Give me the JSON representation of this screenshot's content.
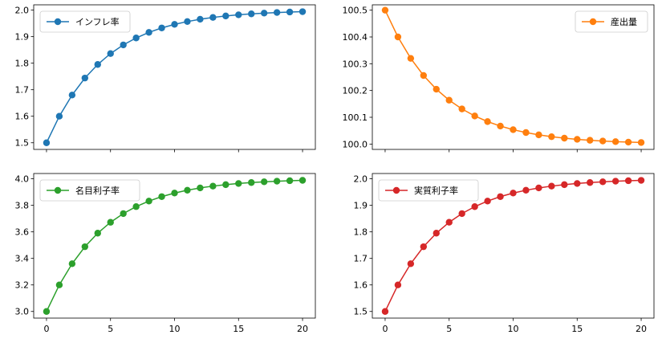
{
  "chart_data": [
    {
      "type": "line",
      "legend": {
        "label": "インフレ率",
        "placement": "top-left"
      },
      "color": "#1f77b4",
      "x": [
        0,
        1,
        2,
        3,
        4,
        5,
        6,
        7,
        8,
        9,
        10,
        11,
        12,
        13,
        14,
        15,
        16,
        17,
        18,
        19,
        20
      ],
      "values": [
        1.5,
        1.6,
        1.68,
        1.744,
        1.7952,
        1.8362,
        1.8689,
        1.8951,
        1.9161,
        1.9329,
        1.9463,
        1.957,
        1.9656,
        1.9725,
        1.978,
        1.9824,
        1.9859,
        1.9887,
        1.991,
        1.9928,
        1.9942
      ],
      "xlim": [
        -1,
        21
      ],
      "ylim": [
        1.475,
        2.02
      ],
      "x_ticks": [
        0,
        5,
        10,
        15,
        20
      ],
      "y_ticks": [
        1.5,
        1.6,
        1.7,
        1.8,
        1.9,
        2.0
      ],
      "y_tick_labels": [
        "1.5",
        "1.6",
        "1.7",
        "1.8",
        "1.9",
        "2.0"
      ],
      "show_x_tick_labels": false
    },
    {
      "type": "line",
      "legend": {
        "label": "産出量",
        "placement": "top-right"
      },
      "color": "#ff7f0e",
      "x": [
        0,
        1,
        2,
        3,
        4,
        5,
        6,
        7,
        8,
        9,
        10,
        11,
        12,
        13,
        14,
        15,
        16,
        17,
        18,
        19,
        20
      ],
      "values": [
        100.5,
        100.4,
        100.32,
        100.256,
        100.2048,
        100.1638,
        100.1311,
        100.1049,
        100.0839,
        100.0671,
        100.0537,
        100.043,
        100.0344,
        100.0275,
        100.022,
        100.0176,
        100.0141,
        100.0113,
        100.009,
        100.0072,
        100.0058
      ],
      "xlim": [
        -1,
        21
      ],
      "ylim": [
        99.98,
        100.52
      ],
      "x_ticks": [
        0,
        5,
        10,
        15,
        20
      ],
      "y_ticks": [
        100.0,
        100.1,
        100.2,
        100.3,
        100.4,
        100.5
      ],
      "y_tick_labels": [
        "100.0",
        "100.1",
        "100.2",
        "100.3",
        "100.4",
        "100.5"
      ],
      "show_x_tick_labels": false
    },
    {
      "type": "line",
      "legend": {
        "label": "名目利子率",
        "placement": "top-left"
      },
      "color": "#2ca02c",
      "x": [
        0,
        1,
        2,
        3,
        4,
        5,
        6,
        7,
        8,
        9,
        10,
        11,
        12,
        13,
        14,
        15,
        16,
        17,
        18,
        19,
        20
      ],
      "values": [
        3.0,
        3.2,
        3.36,
        3.488,
        3.5904,
        3.6723,
        3.7379,
        3.7903,
        3.8322,
        3.8658,
        3.8926,
        3.9141,
        3.9313,
        3.945,
        3.956,
        3.9648,
        3.9719,
        3.9775,
        3.982,
        3.9856,
        3.9885
      ],
      "xlim": [
        -1,
        21
      ],
      "ylim": [
        2.95,
        4.04
      ],
      "x_ticks": [
        0,
        5,
        10,
        15,
        20
      ],
      "x_tick_labels": [
        "0",
        "5",
        "10",
        "15",
        "20"
      ],
      "y_ticks": [
        3.0,
        3.2,
        3.4,
        3.6,
        3.8,
        4.0
      ],
      "y_tick_labels": [
        "3.0",
        "3.2",
        "3.4",
        "3.6",
        "3.8",
        "4.0"
      ],
      "show_x_tick_labels": true
    },
    {
      "type": "line",
      "legend": {
        "label": "実質利子率",
        "placement": "top-left"
      },
      "color": "#d62728",
      "x": [
        0,
        1,
        2,
        3,
        4,
        5,
        6,
        7,
        8,
        9,
        10,
        11,
        12,
        13,
        14,
        15,
        16,
        17,
        18,
        19,
        20
      ],
      "values": [
        1.5,
        1.6,
        1.68,
        1.744,
        1.7952,
        1.8362,
        1.8689,
        1.8951,
        1.9161,
        1.9329,
        1.9463,
        1.957,
        1.9656,
        1.9725,
        1.978,
        1.9824,
        1.9859,
        1.9887,
        1.991,
        1.9928,
        1.9942
      ],
      "xlim": [
        -1,
        21
      ],
      "ylim": [
        1.475,
        2.02
      ],
      "x_ticks": [
        0,
        5,
        10,
        15,
        20
      ],
      "x_tick_labels": [
        "0",
        "5",
        "10",
        "15",
        "20"
      ],
      "y_ticks": [
        1.5,
        1.6,
        1.7,
        1.8,
        1.9,
        2.0
      ],
      "y_tick_labels": [
        "1.5",
        "1.6",
        "1.7",
        "1.8",
        "1.9",
        "2.0"
      ],
      "show_x_tick_labels": true
    }
  ]
}
